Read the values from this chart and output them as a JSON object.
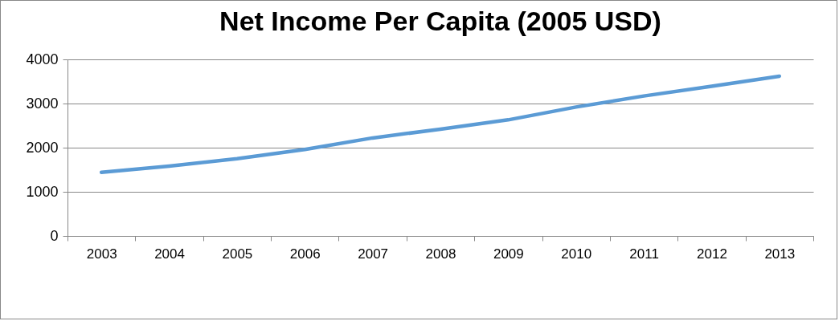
{
  "chart_data": {
    "type": "line",
    "title": "Net Income Per Capita (2005 USD)",
    "categories": [
      "2003",
      "2004",
      "2005",
      "2006",
      "2007",
      "2008",
      "2009",
      "2010",
      "2011",
      "2012",
      "2013"
    ],
    "series": [
      {
        "color": "#5b9bd5",
        "values": [
          1440,
          1580,
          1750,
          1960,
          2220,
          2420,
          2630,
          2920,
          3170,
          3390,
          3620
        ]
      }
    ],
    "ylim": [
      0,
      4000
    ],
    "yticks": [
      0,
      1000,
      2000,
      3000,
      4000
    ],
    "grid": "y",
    "legend": false,
    "marker": "none"
  }
}
